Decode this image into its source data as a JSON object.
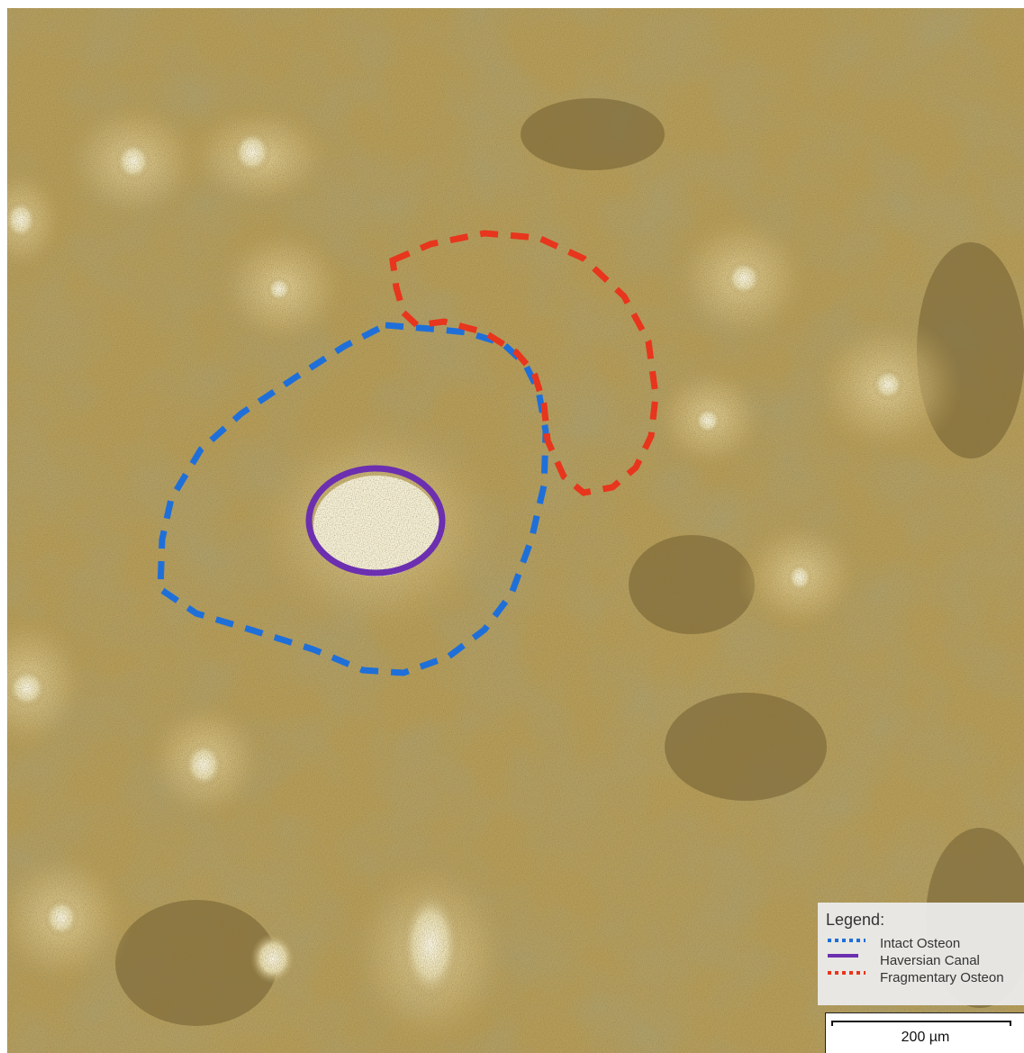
{
  "legend": {
    "title": "Legend:",
    "items": [
      {
        "label": "Intact Osteon",
        "color": "#1f6fd9",
        "style": "dotted"
      },
      {
        "label": "Haversian Canal",
        "color": "#6b2fb0",
        "style": "solid"
      },
      {
        "label": "Fragmentary Osteon",
        "color": "#e8351d",
        "style": "dotted"
      }
    ]
  },
  "scale_bar": {
    "label": "200 µm"
  },
  "colors": {
    "bone_matrix": "#b59a55",
    "bone_dark": "#6f5a2c",
    "canal_highlight": "#f4efd8"
  }
}
